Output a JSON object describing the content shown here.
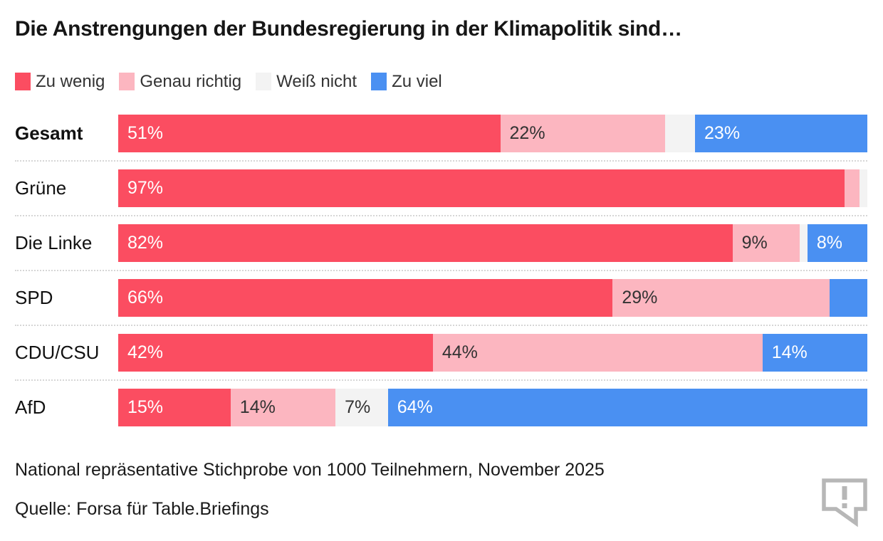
{
  "title": "Die Anstrengungen der Bundesregierung in der Klimapolitik sind…",
  "legend": {
    "items": [
      {
        "label": "Zu wenig",
        "key": "zu_wenig"
      },
      {
        "label": "Genau richtig",
        "key": "genau_richtig"
      },
      {
        "label": "Weiß nicht",
        "key": "weiss_nicht"
      },
      {
        "label": "Zu viel",
        "key": "zu_viel"
      }
    ]
  },
  "colors": {
    "zu_wenig": "#fb4d61",
    "genau_richtig": "#fcb6c0",
    "weiss_nicht": "#f3f3f3",
    "zu_viel": "#4a90f2",
    "segment_text": {
      "zu_wenig": "#ffffff",
      "genau_richtig": "#333333",
      "weiss_nicht": "#333333",
      "zu_viel": "#ffffff"
    },
    "icon_gray": "#b7b7b7"
  },
  "chart_data": {
    "type": "bar",
    "stacked": true,
    "orientation": "horizontal",
    "title": "Die Anstrengungen der Bundesregierung in der Klimapolitik sind…",
    "categories": [
      "Gesamt",
      "Grüne",
      "Die Linke",
      "SPD",
      "CDU/CSU",
      "AfD"
    ],
    "emphasized_category": "Gesamt",
    "series": [
      {
        "name": "Zu wenig",
        "key": "zu_wenig",
        "values": [
          51,
          97,
          82,
          66,
          42,
          15
        ]
      },
      {
        "name": "Genau richtig",
        "key": "genau_richtig",
        "values": [
          22,
          2,
          9,
          29,
          44,
          14
        ]
      },
      {
        "name": "Weiß nicht",
        "key": "weiss_nicht",
        "values": [
          4,
          1,
          1,
          0,
          0,
          7
        ]
      },
      {
        "name": "Zu viel",
        "key": "zu_viel",
        "values": [
          23,
          0,
          8,
          5,
          14,
          64
        ]
      }
    ],
    "value_labels": [
      [
        "51%",
        "22%",
        "",
        "23%"
      ],
      [
        "97%",
        "",
        "",
        ""
      ],
      [
        "82%",
        "9%",
        "",
        "8%"
      ],
      [
        "66%",
        "29%",
        "",
        ""
      ],
      [
        "42%",
        "44%",
        "",
        "14%"
      ],
      [
        "15%",
        "14%",
        "7%",
        "64%"
      ]
    ],
    "xlim": [
      0,
      100
    ],
    "grid": false,
    "legend_position": "top"
  },
  "footer": {
    "note": "National repräsentative Stichprobe von 1000 Teilnehmern, November 2025",
    "source": "Quelle: Forsa für Table.Briefings"
  },
  "icon": {
    "name": "comment-exclamation-icon"
  }
}
